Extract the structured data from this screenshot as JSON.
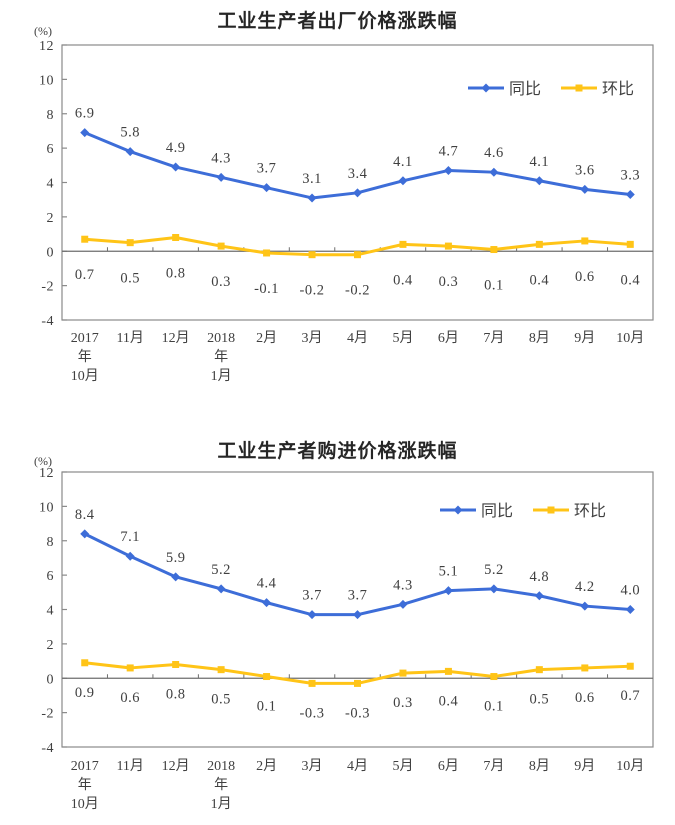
{
  "page": {
    "background": "#ffffff"
  },
  "colors": {
    "yoy_blue": "#3D6DD8",
    "mom_gold": "#FFC417",
    "plot_border": "#8a8a8a",
    "zero_axis": "#6e6e6e",
    "text": "#404040",
    "title": "#262626"
  },
  "charts": [
    {
      "title": "工业生产者出厂价格涨跌幅",
      "unit_label": "(%)",
      "chart_data": {
        "type": "line",
        "categories": [
          "2017年10月",
          "11月",
          "12月",
          "2018年1月",
          "2月",
          "3月",
          "4月",
          "5月",
          "6月",
          "7月",
          "8月",
          "9月",
          "10月"
        ],
        "x_tick_lines": [
          [
            "2017",
            "年",
            "10月"
          ],
          [
            "11月"
          ],
          [
            "12月"
          ],
          [
            "2018",
            "年",
            "1月"
          ],
          [
            "2月"
          ],
          [
            "3月"
          ],
          [
            "4月"
          ],
          [
            "5月"
          ],
          [
            "6月"
          ],
          [
            "7月"
          ],
          [
            "8月"
          ],
          [
            "9月"
          ],
          [
            "10月"
          ]
        ],
        "series": [
          {
            "id": "yoy",
            "name": "同比",
            "color": "#3D6DD8",
            "marker": "diamond",
            "label_position": "above",
            "values": [
              6.9,
              5.8,
              4.9,
              4.3,
              3.7,
              3.1,
              3.4,
              4.1,
              4.7,
              4.6,
              4.1,
              3.6,
              3.3
            ]
          },
          {
            "id": "mom",
            "name": "环比",
            "color": "#FFC417",
            "marker": "square",
            "label_position": "below",
            "values": [
              0.7,
              0.5,
              0.8,
              0.3,
              -0.1,
              -0.2,
              -0.2,
              0.4,
              0.3,
              0.1,
              0.4,
              0.6,
              0.4
            ]
          }
        ],
        "ylim": [
          -4,
          12
        ],
        "ytick_step": 2,
        "ytick_labels": [
          "-4",
          "-2",
          "0",
          "2",
          "4",
          "6",
          "8",
          "10",
          "12"
        ],
        "grid": false,
        "legend_position": "top-right-inside"
      }
    },
    {
      "title": "工业生产者购进价格涨跌幅",
      "unit_label": "(%)",
      "chart_data": {
        "type": "line",
        "categories": [
          "2017年10月",
          "11月",
          "12月",
          "2018年1月",
          "2月",
          "3月",
          "4月",
          "5月",
          "6月",
          "7月",
          "8月",
          "9月",
          "10月"
        ],
        "x_tick_lines": [
          [
            "2017",
            "年",
            "10月"
          ],
          [
            "11月"
          ],
          [
            "12月"
          ],
          [
            "2018",
            "年",
            "1月"
          ],
          [
            "2月"
          ],
          [
            "3月"
          ],
          [
            "4月"
          ],
          [
            "5月"
          ],
          [
            "6月"
          ],
          [
            "7月"
          ],
          [
            "8月"
          ],
          [
            "9月"
          ],
          [
            "10月"
          ]
        ],
        "series": [
          {
            "id": "yoy",
            "name": "同比",
            "color": "#3D6DD8",
            "marker": "diamond",
            "label_position": "above",
            "values": [
              8.4,
              7.1,
              5.9,
              5.2,
              4.4,
              3.7,
              3.7,
              4.3,
              5.1,
              5.2,
              4.8,
              4.2,
              4.0
            ]
          },
          {
            "id": "mom",
            "name": "环比",
            "color": "#FFC417",
            "marker": "square",
            "label_position": "below",
            "values": [
              0.9,
              0.6,
              0.8,
              0.5,
              0.1,
              -0.3,
              -0.3,
              0.3,
              0.4,
              0.1,
              0.5,
              0.6,
              0.7
            ]
          }
        ],
        "ylim": [
          -4,
          12
        ],
        "ytick_step": 2,
        "ytick_labels": [
          "-4",
          "-2",
          "0",
          "2",
          "4",
          "6",
          "8",
          "10",
          "12"
        ],
        "grid": false,
        "legend_position": "top-right-inside"
      }
    }
  ]
}
